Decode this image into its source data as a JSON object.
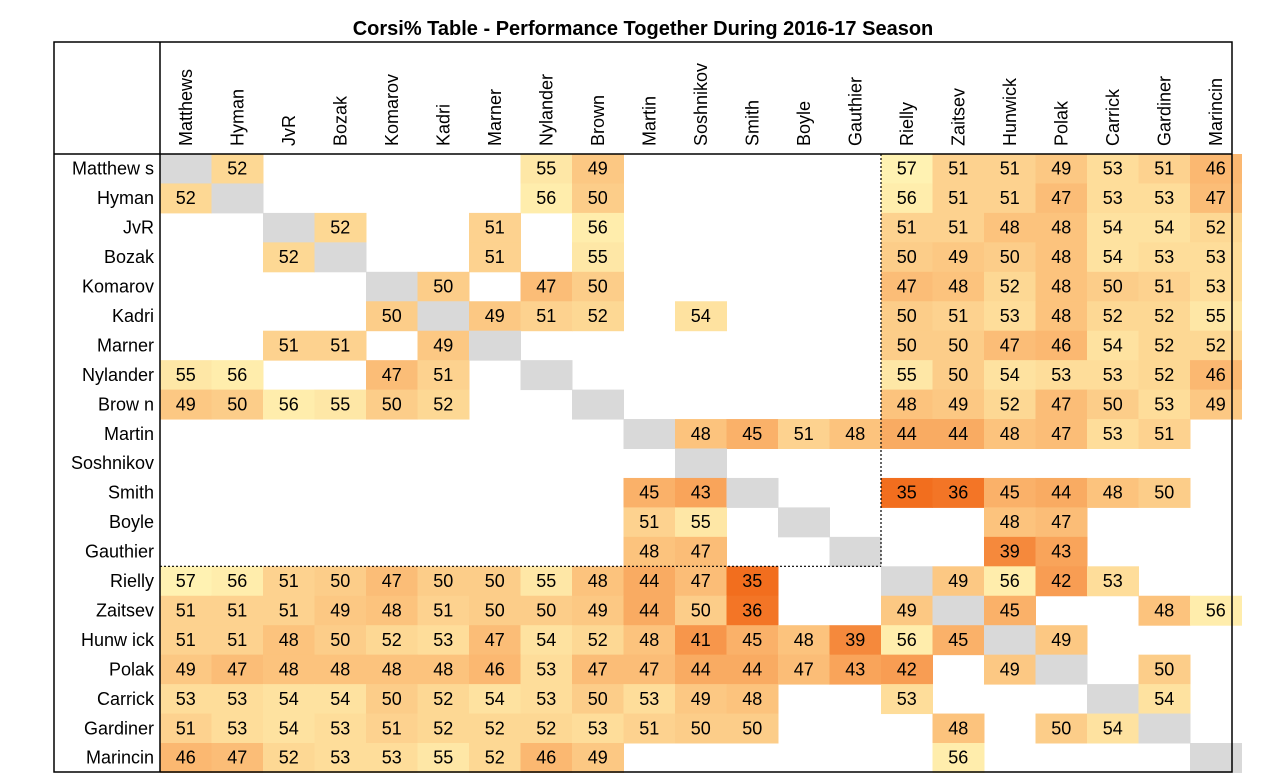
{
  "chart_data": {
    "type": "heatmap",
    "title": "Corsi% Table - Performance Together During 2016-17 Season",
    "columns": [
      "Matthews",
      "Hyman",
      "JvR",
      "Bozak",
      "Komarov",
      "Kadri",
      "Marner",
      "Nylander",
      "Brown",
      "Martin",
      "Soshnikov",
      "Smith",
      "Boyle",
      "Gauthier",
      "Rielly",
      "Zaitsev",
      "Hunwick",
      "Polak",
      "Carrick",
      "Gardiner",
      "Marincin"
    ],
    "rows": [
      "Matthew s",
      "Hyman",
      "JvR",
      "Bozak",
      "Komarov",
      "Kadri",
      "Marner",
      "Nylander",
      "Brow n",
      "Martin",
      "Soshnikov",
      "Smith",
      "Boyle",
      "Gauthier",
      "Rielly",
      "Zaitsev",
      "Hunw ick",
      "Polak",
      "Carrick",
      "Gardiner",
      "Marincin"
    ],
    "values": [
      [
        null,
        52,
        null,
        null,
        null,
        null,
        null,
        55,
        49,
        null,
        null,
        null,
        null,
        null,
        57,
        51,
        51,
        49,
        53,
        51,
        46
      ],
      [
        52,
        null,
        null,
        null,
        null,
        null,
        null,
        56,
        50,
        null,
        null,
        null,
        null,
        null,
        56,
        51,
        51,
        47,
        53,
        53,
        47
      ],
      [
        null,
        null,
        null,
        52,
        null,
        null,
        51,
        null,
        56,
        null,
        null,
        null,
        null,
        null,
        51,
        51,
        48,
        48,
        54,
        54,
        52
      ],
      [
        null,
        null,
        52,
        null,
        null,
        null,
        51,
        null,
        55,
        null,
        null,
        null,
        null,
        null,
        50,
        49,
        50,
        48,
        54,
        53,
        53
      ],
      [
        null,
        null,
        null,
        null,
        null,
        50,
        null,
        47,
        50,
        null,
        null,
        null,
        null,
        null,
        47,
        48,
        52,
        48,
        50,
        51,
        53
      ],
      [
        null,
        null,
        null,
        null,
        50,
        null,
        49,
        51,
        52,
        null,
        54,
        null,
        null,
        null,
        50,
        51,
        53,
        48,
        52,
        52,
        55
      ],
      [
        null,
        null,
        51,
        51,
        null,
        49,
        null,
        null,
        null,
        null,
        null,
        null,
        null,
        null,
        50,
        50,
        47,
        46,
        54,
        52,
        52
      ],
      [
        55,
        56,
        null,
        null,
        47,
        51,
        null,
        null,
        null,
        null,
        null,
        null,
        null,
        null,
        55,
        50,
        54,
        53,
        53,
        52,
        46
      ],
      [
        49,
        50,
        56,
        55,
        50,
        52,
        null,
        null,
        null,
        null,
        null,
        null,
        null,
        null,
        48,
        49,
        52,
        47,
        50,
        53,
        49
      ],
      [
        null,
        null,
        null,
        null,
        null,
        null,
        null,
        null,
        null,
        null,
        48,
        45,
        51,
        48,
        44,
        44,
        48,
        47,
        53,
        51,
        null
      ],
      [
        null,
        null,
        null,
        null,
        null,
        null,
        null,
        null,
        null,
        null,
        null,
        null,
        null,
        null,
        null,
        null,
        null,
        null,
        null,
        null,
        null
      ],
      [
        null,
        null,
        null,
        null,
        null,
        null,
        null,
        null,
        null,
        45,
        43,
        null,
        null,
        null,
        35,
        36,
        45,
        44,
        48,
        50,
        null
      ],
      [
        null,
        null,
        null,
        null,
        null,
        null,
        null,
        null,
        null,
        51,
        55,
        null,
        null,
        null,
        null,
        null,
        48,
        47,
        null,
        null,
        null
      ],
      [
        null,
        null,
        null,
        null,
        null,
        null,
        null,
        null,
        null,
        48,
        47,
        null,
        null,
        null,
        null,
        null,
        39,
        43,
        null,
        null,
        null
      ],
      [
        57,
        56,
        51,
        50,
        47,
        50,
        50,
        55,
        48,
        44,
        47,
        35,
        null,
        null,
        null,
        49,
        56,
        42,
        53,
        null,
        null
      ],
      [
        51,
        51,
        51,
        49,
        48,
        51,
        50,
        50,
        49,
        44,
        50,
        36,
        null,
        null,
        49,
        null,
        45,
        null,
        null,
        48,
        56
      ],
      [
        51,
        51,
        48,
        50,
        52,
        53,
        47,
        54,
        52,
        48,
        41,
        45,
        48,
        39,
        56,
        45,
        null,
        49,
        null,
        null,
        null
      ],
      [
        49,
        47,
        48,
        48,
        48,
        48,
        46,
        53,
        47,
        47,
        44,
        44,
        47,
        43,
        42,
        null,
        49,
        null,
        null,
        50,
        null
      ],
      [
        53,
        53,
        54,
        54,
        50,
        52,
        54,
        53,
        50,
        53,
        49,
        48,
        null,
        null,
        53,
        null,
        null,
        null,
        null,
        54,
        null
      ],
      [
        51,
        53,
        54,
        53,
        51,
        52,
        52,
        52,
        53,
        51,
        50,
        50,
        null,
        null,
        null,
        48,
        null,
        50,
        54,
        null,
        null
      ],
      [
        46,
        47,
        52,
        53,
        53,
        55,
        52,
        46,
        49,
        null,
        null,
        null,
        null,
        null,
        null,
        56,
        null,
        null,
        null,
        null,
        null
      ]
    ],
    "color_scale": {
      "low_color": "#f26e1e",
      "mid_color": "#fbb871",
      "high_color": "#fff2b2",
      "diagonal_color": "#d9d9d9"
    }
  }
}
